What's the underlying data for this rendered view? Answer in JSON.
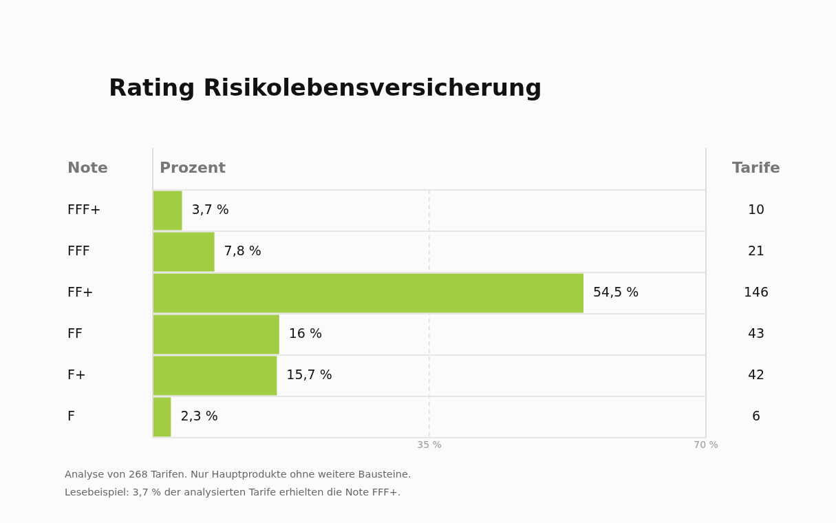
{
  "chart_data": {
    "type": "bar",
    "orientation": "horizontal",
    "title": "Rating Risikolebensversicherung",
    "ylabel": "Note",
    "xlabel": "Prozent",
    "y2label": "Tarife",
    "categories": [
      "FFF+",
      "FFF",
      "FF+",
      "FF",
      "F+",
      "F"
    ],
    "values": [
      3.7,
      7.8,
      54.5,
      16,
      15.7,
      2.3
    ],
    "value_labels": [
      "3,7 %",
      "7,8 %",
      "54,5 %",
      "16 %",
      "15,7 %",
      "2,3 %"
    ],
    "y2_categories": [
      "10",
      "21",
      "146",
      "43",
      "42",
      "6"
    ],
    "color": "#a3cc45",
    "xlim": [
      0,
      70
    ],
    "xticks": [
      {
        "value": 35,
        "label": "35 %"
      },
      {
        "value": 70,
        "label": "70 %"
      }
    ],
    "grid": "x",
    "annotations": [
      "Analyse von 268 Tarifen. Nur Hauptprodukte ohne weitere Bausteine.",
      "Lesebeispiel: 3,7 % der analysierten Tarife erhielten die Note FFF+."
    ]
  }
}
